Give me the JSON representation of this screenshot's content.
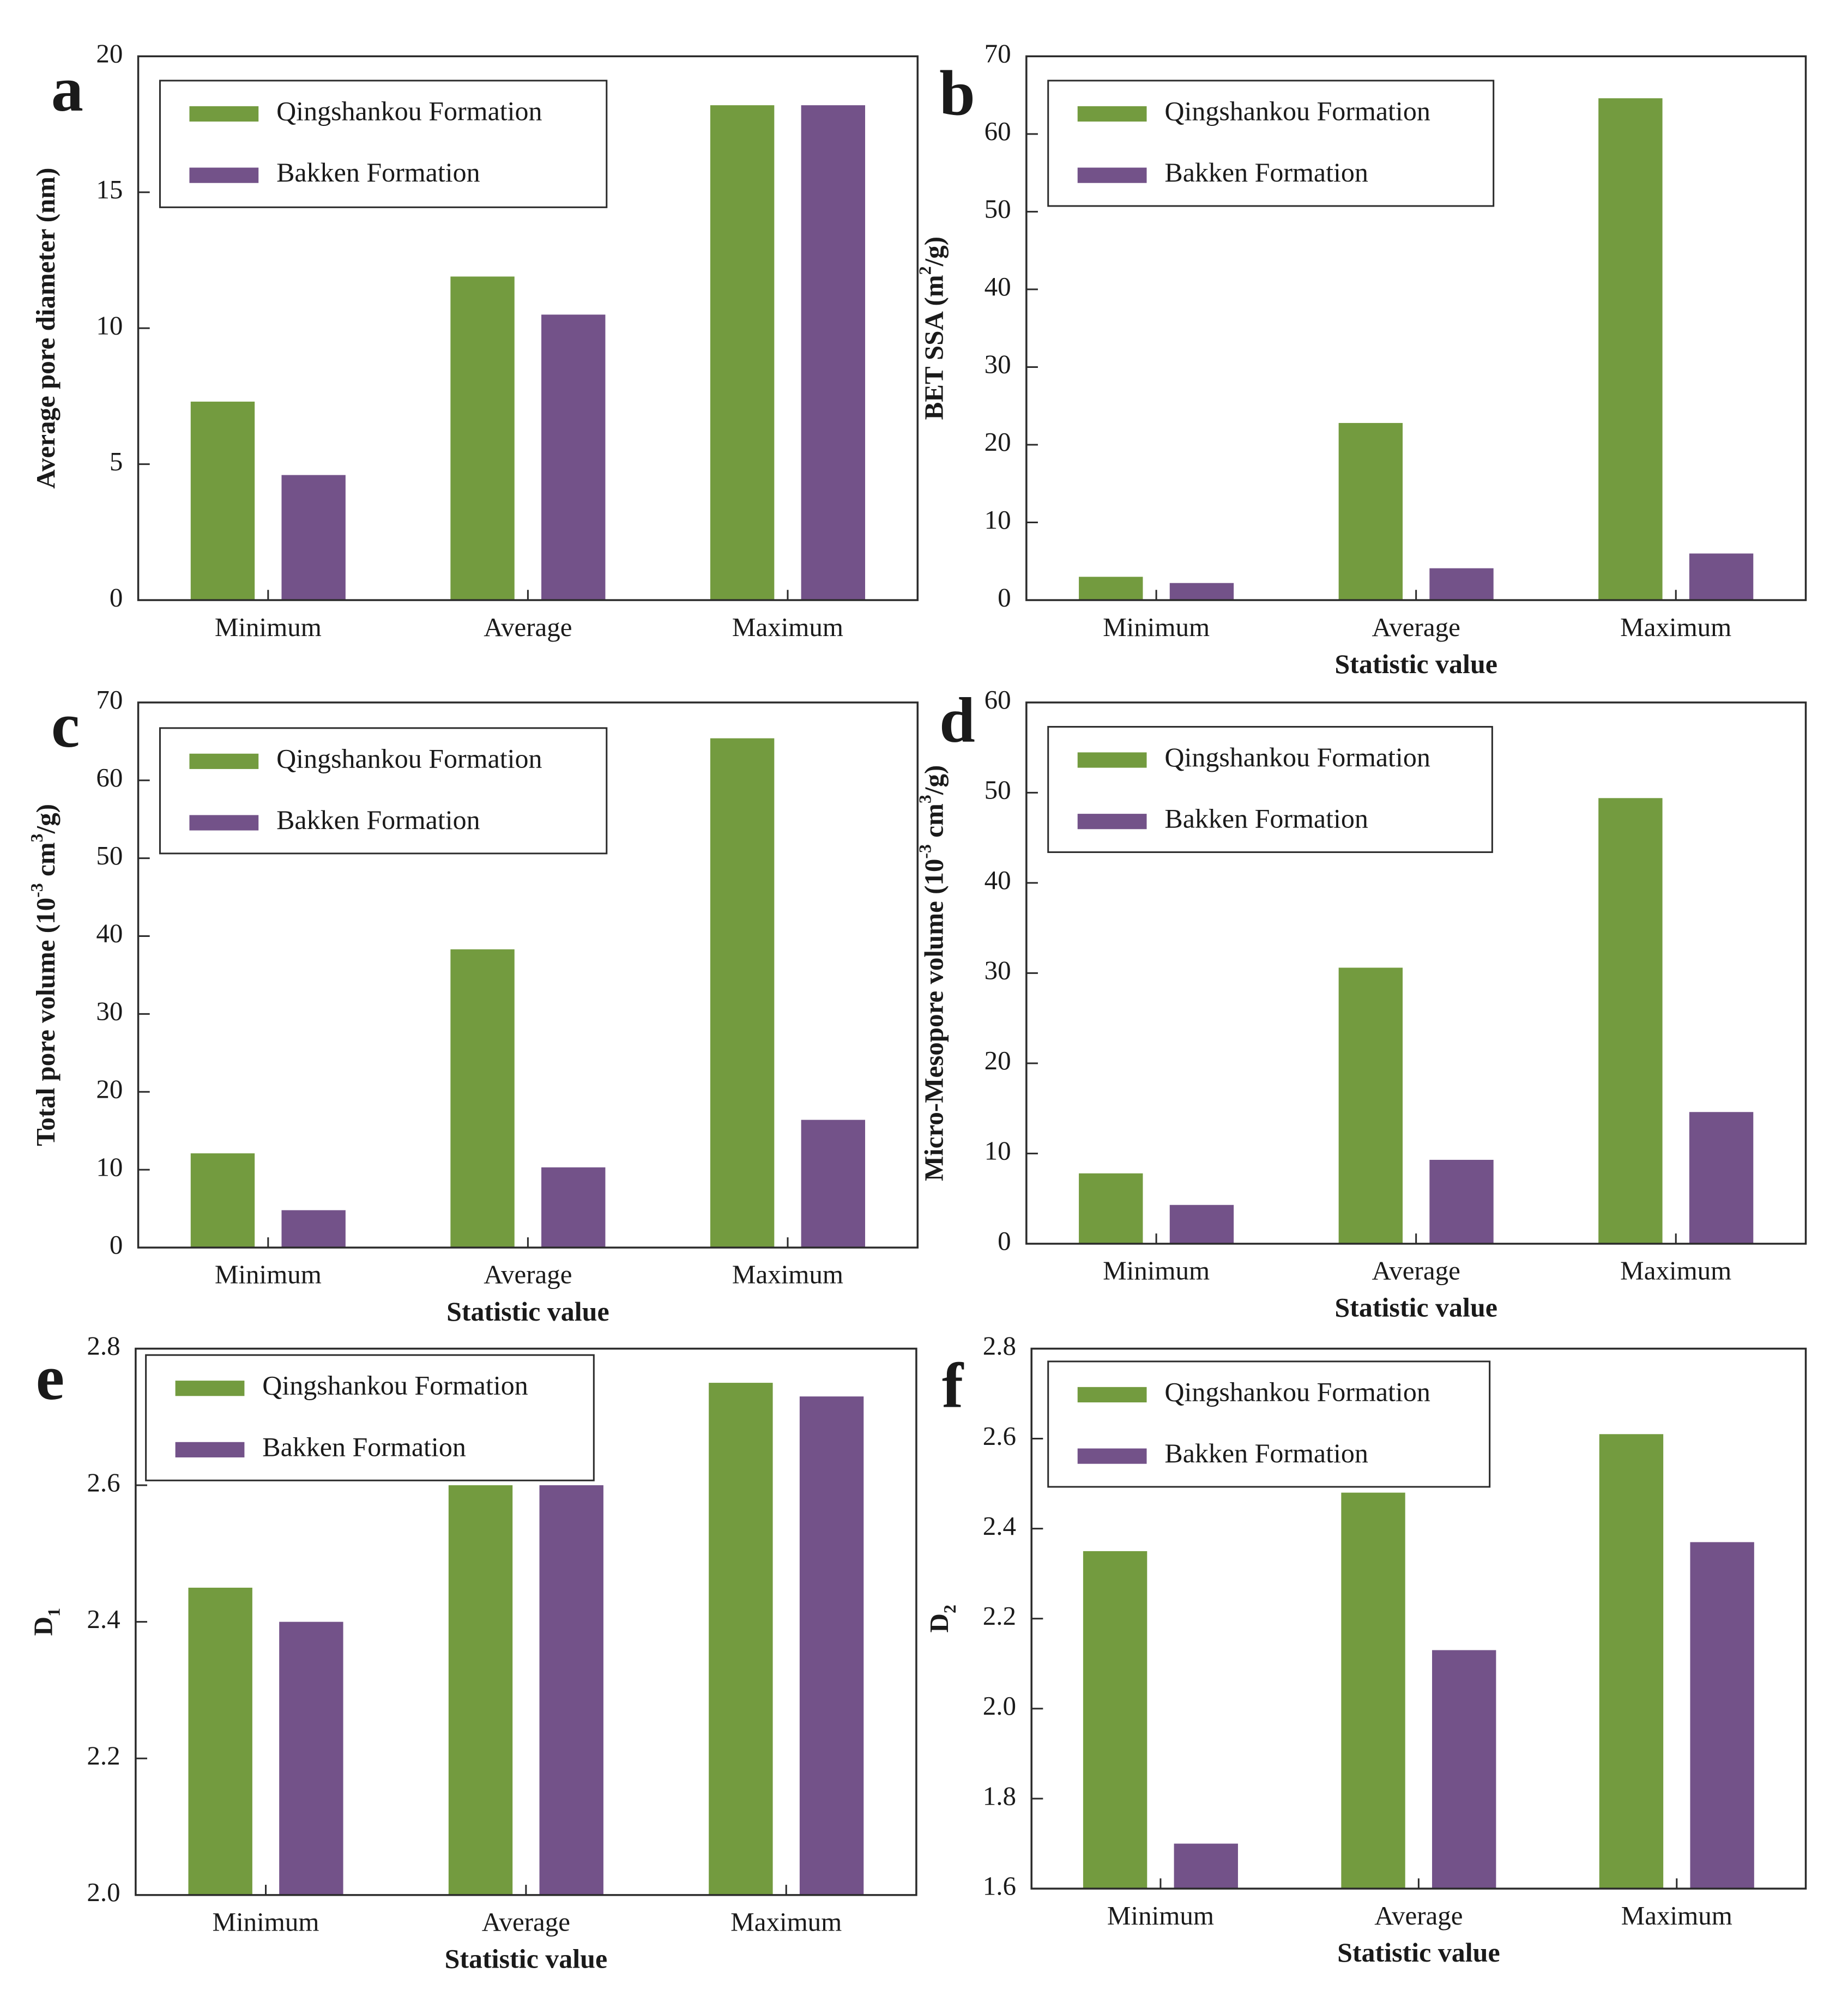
{
  "colors": {
    "qingshankou": "#739b3f",
    "bakken": "#735289",
    "axis": "#2b2b2b",
    "text": "#1a1a1a"
  },
  "chart_data": [
    {
      "panel": "a",
      "type": "bar",
      "categories": [
        "Minimum",
        "Average",
        "Maximum"
      ],
      "series": [
        {
          "name": "Qingshankou Formation",
          "values": [
            7.3,
            11.9,
            18.2
          ]
        },
        {
          "name": "Bakken Formation",
          "values": [
            4.6,
            10.5,
            18.2
          ]
        }
      ],
      "xlabel": "",
      "ylabel_parts": [
        {
          "t": "Average pore diameter (nm)"
        }
      ],
      "ylim": [
        0,
        20
      ],
      "yticks": [
        "0",
        "5",
        "10",
        "15",
        "20"
      ],
      "legend": "top-left"
    },
    {
      "panel": "b",
      "type": "bar",
      "categories": [
        "Minimum",
        "Average",
        "Maximum"
      ],
      "series": [
        {
          "name": "Qingshankou Formation",
          "values": [
            3.0,
            22.8,
            64.6
          ]
        },
        {
          "name": "Bakken Formation",
          "values": [
            2.2,
            4.1,
            6.0
          ]
        }
      ],
      "xlabel": "Statistic value",
      "ylabel_parts": [
        {
          "t": "BET SSA (m"
        },
        {
          "t": "2",
          "sup": true
        },
        {
          "t": "/g)"
        }
      ],
      "ylim": [
        0,
        70
      ],
      "yticks": [
        "0",
        "10",
        "20",
        "30",
        "40",
        "50",
        "60",
        "70"
      ],
      "legend": "top-left"
    },
    {
      "panel": "c",
      "type": "bar",
      "categories": [
        "Minimum",
        "Average",
        "Maximum"
      ],
      "series": [
        {
          "name": "Qingshankou Formation",
          "values": [
            12.1,
            38.3,
            65.4
          ]
        },
        {
          "name": "Bakken Formation",
          "values": [
            4.8,
            10.3,
            16.4
          ]
        }
      ],
      "xlabel": "Statistic value",
      "ylabel_parts": [
        {
          "t": "Total pore volume (10"
        },
        {
          "t": "-3",
          "sup": true
        },
        {
          "t": " cm"
        },
        {
          "t": "3",
          "sup": true
        },
        {
          "t": "/g)"
        }
      ],
      "ylim": [
        0,
        70
      ],
      "yticks": [
        "0",
        "10",
        "20",
        "30",
        "40",
        "50",
        "60",
        "70"
      ],
      "legend": "top-left"
    },
    {
      "panel": "d",
      "type": "bar",
      "categories": [
        "Minimum",
        "Average",
        "Maximum"
      ],
      "series": [
        {
          "name": "Qingshankou Formation",
          "values": [
            7.8,
            30.6,
            49.4
          ]
        },
        {
          "name": "Bakken Formation",
          "values": [
            4.3,
            9.3,
            14.6
          ]
        }
      ],
      "xlabel": "Statistic value",
      "ylabel_parts": [
        {
          "t": "Micro-Mesopore volume (10"
        },
        {
          "t": "-3",
          "sup": true
        },
        {
          "t": " cm"
        },
        {
          "t": "3",
          "sup": true
        },
        {
          "t": "/g)"
        }
      ],
      "ylim": [
        0,
        60
      ],
      "yticks": [
        "0",
        "10",
        "20",
        "30",
        "40",
        "50",
        "60"
      ],
      "legend": "top-left"
    },
    {
      "panel": "e",
      "type": "bar",
      "categories": [
        "Minimum",
        "Average",
        "Maximum"
      ],
      "series": [
        {
          "name": "Qingshankou Formation",
          "values": [
            2.45,
            2.6,
            2.75
          ]
        },
        {
          "name": "Bakken Formation",
          "values": [
            2.4,
            2.6,
            2.73
          ]
        }
      ],
      "xlabel": "Statistic value",
      "ylabel_parts": [
        {
          "t": "D"
        },
        {
          "t": "1",
          "sub": true
        }
      ],
      "ylim": [
        2.0,
        2.8
      ],
      "yticks": [
        "2.0",
        "2.2",
        "2.4",
        "2.6",
        "2.8"
      ],
      "legend": "top-left"
    },
    {
      "panel": "f",
      "type": "bar",
      "categories": [
        "Minimum",
        "Average",
        "Maximum"
      ],
      "series": [
        {
          "name": "Qingshankou Formation",
          "values": [
            2.35,
            2.48,
            2.61
          ]
        },
        {
          "name": "Bakken Formation",
          "values": [
            1.7,
            2.13,
            2.37
          ]
        }
      ],
      "xlabel": "Statistic value",
      "ylabel_parts": [
        {
          "t": "D"
        },
        {
          "t": "2",
          "sub": true
        }
      ],
      "ylim": [
        1.6,
        2.8
      ],
      "yticks": [
        "1.6",
        "1.8",
        "2.0",
        "2.2",
        "2.4",
        "2.6",
        "2.8"
      ],
      "legend": "top-left"
    }
  ]
}
